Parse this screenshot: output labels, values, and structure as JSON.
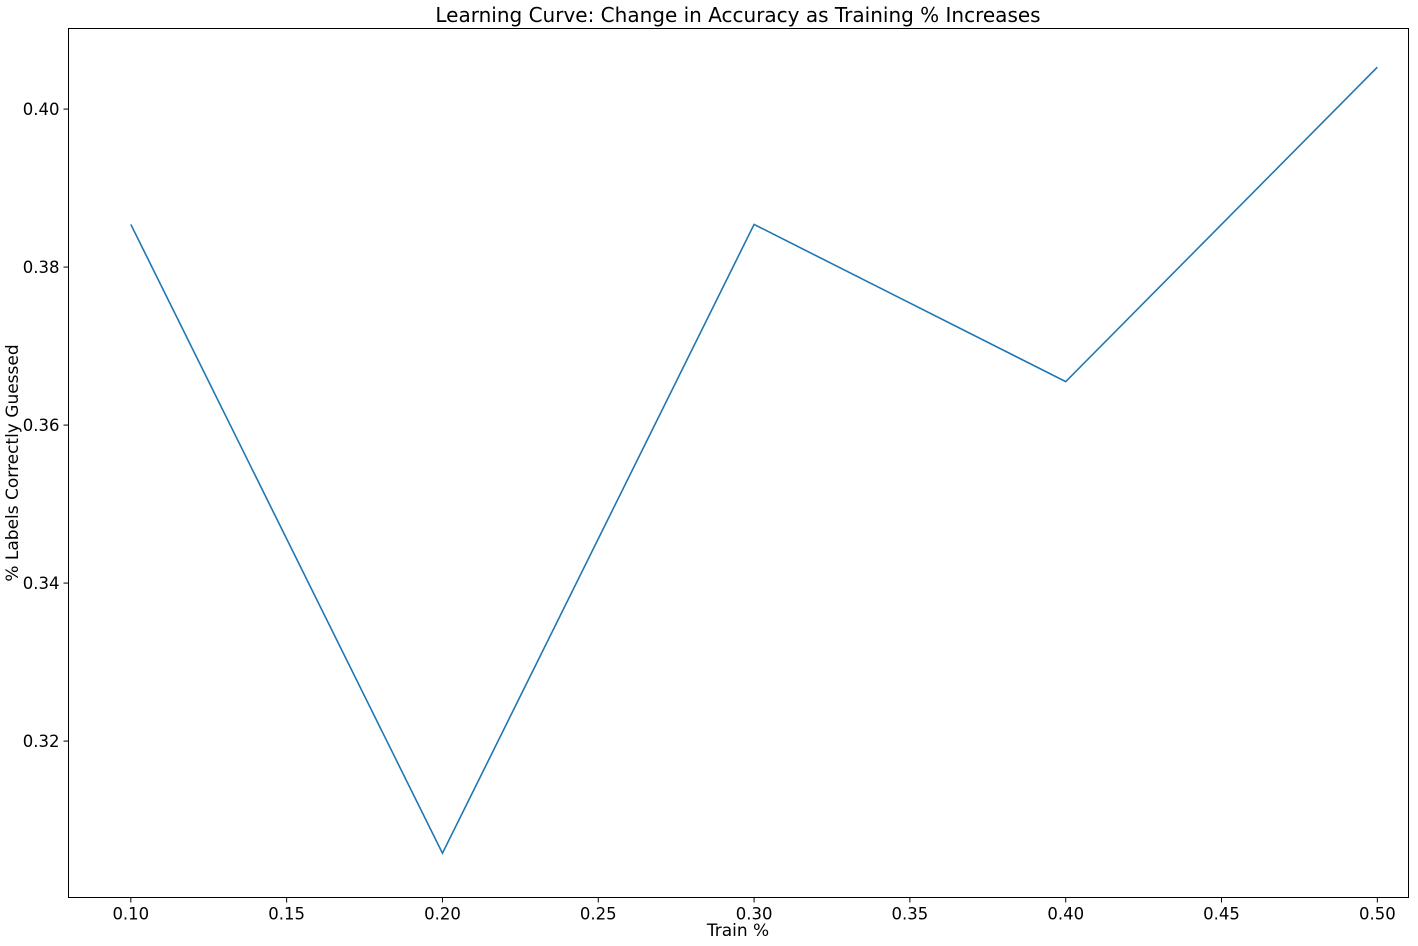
{
  "chart_data": {
    "type": "line",
    "title": "Learning Curve: Change in Accuracy as Training % Increases",
    "xlabel": "Train %",
    "ylabel": "% Labels Correctly Guessed",
    "xlim": [
      0.08,
      0.51
    ],
    "ylim": [
      0.3002,
      0.4102
    ],
    "x_ticks": [
      0.1,
      0.15,
      0.2,
      0.25,
      0.3,
      0.35,
      0.4,
      0.45,
      0.5
    ],
    "x_tick_labels": [
      "0.10",
      "0.15",
      "0.20",
      "0.25",
      "0.30",
      "0.35",
      "0.40",
      "0.45",
      "0.50"
    ],
    "y_ticks": [
      0.32,
      0.34,
      0.36,
      0.38,
      0.4
    ],
    "y_tick_labels": [
      "0.32",
      "0.34",
      "0.36",
      "0.38",
      "0.40"
    ],
    "grid": false,
    "series": [
      {
        "color": "#1f77b4",
        "x": [
          0.1,
          0.2,
          0.3,
          0.4,
          0.5
        ],
        "y": [
          0.3854,
          0.3058,
          0.3854,
          0.3655,
          0.4053
        ]
      }
    ]
  }
}
